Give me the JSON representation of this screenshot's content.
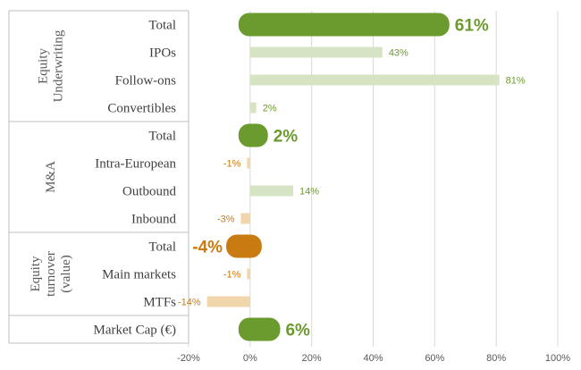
{
  "chart_data": {
    "type": "bar",
    "orientation": "horizontal",
    "xlim": [
      -20,
      100
    ],
    "x_ticks": [
      "-20%",
      "0%",
      "20%",
      "40%",
      "60%",
      "80%",
      "100%"
    ],
    "grid": true,
    "colors": {
      "total_pos": "#6b9a2f",
      "total_neg": "#c97a10",
      "sub_pos": "#d6e4c4",
      "sub_neg": "#f1d6ac",
      "label_pos": "#6b9a2f",
      "label_neg": "#c97a10"
    },
    "groups": [
      {
        "name": "Equity Underwriting",
        "rows": [
          0,
          3
        ]
      },
      {
        "name": "M&A",
        "rows": [
          4,
          7
        ]
      },
      {
        "name": "Equity turnover (value)",
        "rows": [
          8,
          10
        ]
      }
    ],
    "rows": [
      {
        "category": "Total",
        "value": 61,
        "label": "61%",
        "total": true
      },
      {
        "category": "IPOs",
        "value": 43,
        "label": "43%",
        "total": false
      },
      {
        "category": "Follow-ons",
        "value": 81,
        "label": "81%",
        "total": false
      },
      {
        "category": "Convertibles",
        "value": 2,
        "label": "2%",
        "total": false
      },
      {
        "category": "Total",
        "value": 2,
        "label": "2%",
        "total": true
      },
      {
        "category": "Intra-European",
        "value": -1,
        "label": "-1%",
        "total": false
      },
      {
        "category": "Outbound",
        "value": 14,
        "label": "14%",
        "total": false
      },
      {
        "category": "Inbound",
        "value": -3,
        "label": "-3%",
        "total": false
      },
      {
        "category": "Total",
        "value": -4,
        "label": "-4%",
        "total": true
      },
      {
        "category": "Main markets",
        "value": -1,
        "label": "-1%",
        "total": false
      },
      {
        "category": "MTFs",
        "value": -14,
        "label": "-14%",
        "total": false
      },
      {
        "category": "Market Cap (€)",
        "value": 6,
        "label": "6%",
        "total": true
      }
    ]
  }
}
